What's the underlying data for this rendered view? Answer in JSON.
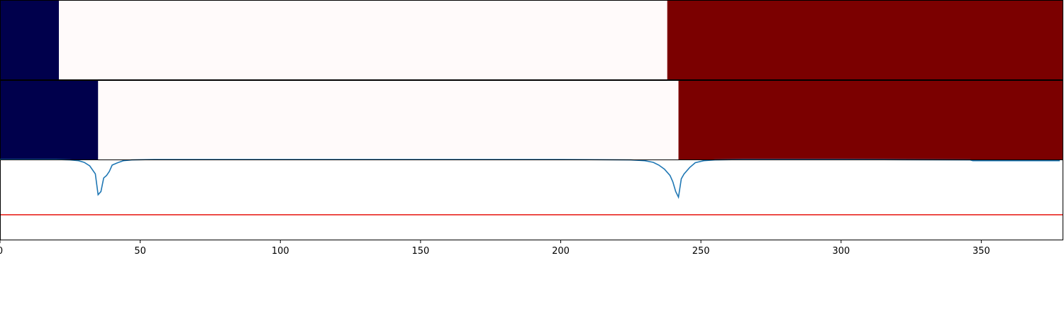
{
  "chart_data": [
    {
      "type": "heatmap",
      "xlim": [
        0,
        379
      ],
      "segments": [
        {
          "x0": 0,
          "x1": 21,
          "color": "#00004c"
        },
        {
          "x0": 21,
          "x1": 238,
          "color": "#fffafa"
        },
        {
          "x0": 238,
          "x1": 379,
          "color": "#7b0000"
        }
      ]
    },
    {
      "type": "heatmap",
      "xlim": [
        0,
        379
      ],
      "segments": [
        {
          "x0": 0,
          "x1": 35,
          "color": "#00004c"
        },
        {
          "x0": 35,
          "x1": 242,
          "color": "#fffafa"
        },
        {
          "x0": 242,
          "x1": 379,
          "color": "#7b0000"
        }
      ]
    },
    {
      "type": "line",
      "xlim": [
        0,
        379
      ],
      "ylim": [
        0,
        1
      ],
      "xticks": [
        0,
        50,
        100,
        150,
        200,
        250,
        300,
        350
      ],
      "xtick_labels": [
        "0",
        "50",
        "100",
        "150",
        "200",
        "250",
        "300",
        "350"
      ],
      "threshold": {
        "y": 0.31,
        "color": "#e8251f"
      },
      "series": [
        {
          "color": "#1f77b4",
          "points": [
            [
              0,
              1.0
            ],
            [
              20,
              1.0
            ],
            [
              25,
              0.995
            ],
            [
              28,
              0.985
            ],
            [
              30,
              0.965
            ],
            [
              32,
              0.92
            ],
            [
              34,
              0.82
            ],
            [
              35,
              0.56
            ],
            [
              36,
              0.6
            ],
            [
              37,
              0.77
            ],
            [
              38,
              0.8
            ],
            [
              39,
              0.85
            ],
            [
              40,
              0.93
            ],
            [
              42,
              0.96
            ],
            [
              44,
              0.985
            ],
            [
              47,
              0.995
            ],
            [
              55,
              1.0
            ],
            [
              60,
              1.0
            ],
            [
              150,
              1.0
            ],
            [
              200,
              1.0
            ],
            [
              225,
              0.995
            ],
            [
              230,
              0.985
            ],
            [
              233,
              0.965
            ],
            [
              235,
              0.93
            ],
            [
              237,
              0.88
            ],
            [
              239,
              0.8
            ],
            [
              240,
              0.72
            ],
            [
              241,
              0.6
            ],
            [
              242,
              0.53
            ],
            [
              243,
              0.76
            ],
            [
              244,
              0.82
            ],
            [
              246,
              0.9
            ],
            [
              248,
              0.96
            ],
            [
              251,
              0.985
            ],
            [
              255,
              0.995
            ],
            [
              265,
              1.0
            ],
            [
              300,
              1.0
            ],
            [
              315,
              0.998
            ],
            [
              346,
              0.995
            ],
            [
              347,
              0.985
            ],
            [
              360,
              0.985
            ],
            [
              378,
              0.985
            ]
          ]
        }
      ]
    }
  ]
}
